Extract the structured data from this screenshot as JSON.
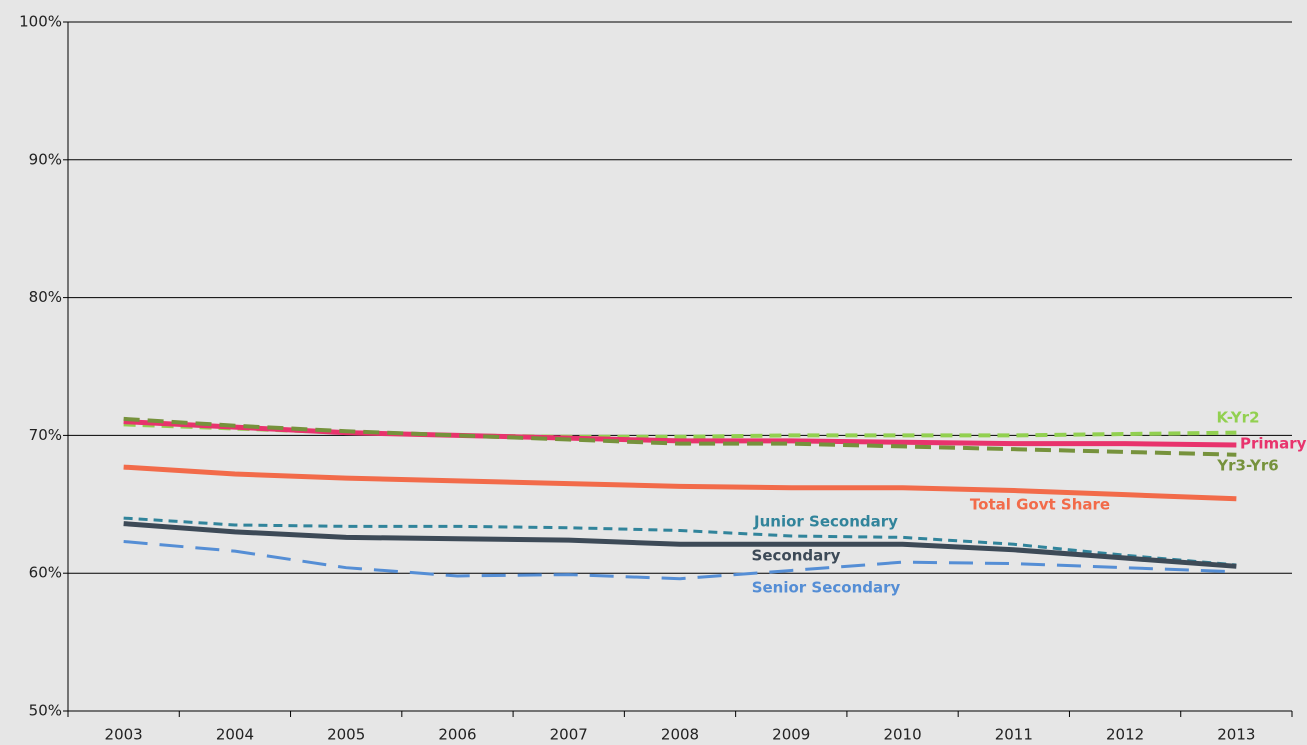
{
  "chart_data": {
    "type": "line",
    "categories": [
      "2003",
      "2004",
      "2005",
      "2006",
      "2007",
      "2008",
      "2009",
      "2010",
      "2011",
      "2012",
      "2013"
    ],
    "series": [
      {
        "name": "K-Yr2",
        "color": "#92d050",
        "values": [
          70.8,
          70.5,
          70.2,
          70.0,
          69.9,
          69.9,
          70.0,
          70.0,
          70.0,
          70.1,
          70.2
        ]
      },
      {
        "name": "Primary",
        "color": "#e8336d",
        "values": [
          71.0,
          70.6,
          70.2,
          70.0,
          69.8,
          69.6,
          69.6,
          69.5,
          69.4,
          69.4,
          69.3
        ]
      },
      {
        "name": "Yr3-Yr6",
        "color": "#76923c",
        "values": [
          71.2,
          70.7,
          70.3,
          70.0,
          69.7,
          69.4,
          69.4,
          69.2,
          69.0,
          68.8,
          68.6
        ]
      },
      {
        "name": "Total Govt Share",
        "color": "#f26b4a",
        "values": [
          67.7,
          67.2,
          66.9,
          66.7,
          66.5,
          66.3,
          66.2,
          66.2,
          66.0,
          65.7,
          65.4
        ]
      },
      {
        "name": "Junior Secondary",
        "color": "#31849b",
        "values": [
          64.0,
          63.5,
          63.4,
          63.4,
          63.3,
          63.1,
          62.7,
          62.6,
          62.1,
          61.3,
          60.6
        ]
      },
      {
        "name": "Secondary",
        "color": "#3d4a57",
        "values": [
          63.6,
          63.0,
          62.6,
          62.5,
          62.4,
          62.1,
          62.1,
          62.1,
          61.7,
          61.1,
          60.5
        ]
      },
      {
        "name": "Senior Secondary",
        "color": "#558ed5",
        "values": [
          62.3,
          61.6,
          60.4,
          59.8,
          59.9,
          59.6,
          60.2,
          60.8,
          60.7,
          60.4,
          60.1
        ]
      }
    ],
    "ylim": [
      50,
      100
    ],
    "yticks": [
      {
        "value": 50,
        "label": "50%"
      },
      {
        "value": 60,
        "label": "60%"
      },
      {
        "value": 70,
        "label": "70%"
      },
      {
        "value": 80,
        "label": "80%"
      },
      {
        "value": 90,
        "label": "90%"
      },
      {
        "value": 100,
        "label": "100%"
      }
    ],
    "grid": true
  }
}
